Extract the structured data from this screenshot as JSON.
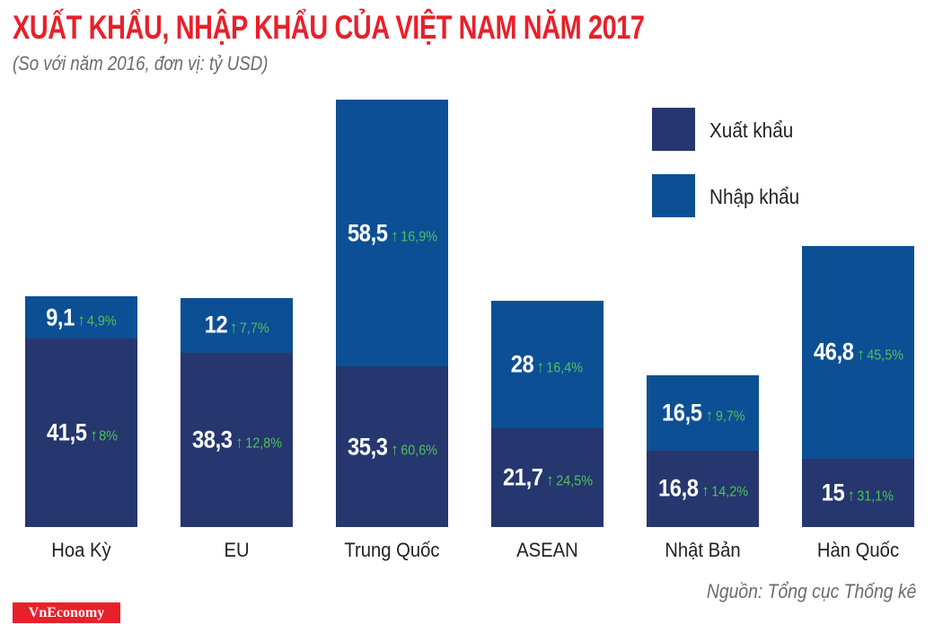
{
  "chart_data": {
    "type": "bar",
    "stacked": true,
    "title": "XUẤT KHẨU, NHẬP KHẨU CỦA VIỆT NAM NĂM 2017",
    "subtitle": "(So với năm 2016, đơn vị: tỷ USD)",
    "categories": [
      "Hoa Kỳ",
      "EU",
      "Trung Quốc",
      "ASEAN",
      "Nhật Bản",
      "Hàn Quốc"
    ],
    "series": [
      {
        "name": "Xuất khẩu",
        "color": "#25376e",
        "values": [
          41.5,
          38.3,
          35.3,
          21.7,
          16.8,
          15
        ],
        "labels": [
          "41,5",
          "38,3",
          "35,3",
          "21,7",
          "16,8",
          "15"
        ],
        "growth": [
          "8%",
          "12,8%",
          "60,6%",
          "24,5%",
          "14,2%",
          "31,1%"
        ]
      },
      {
        "name": "Nhập khẩu",
        "color": "#0d4f94",
        "values": [
          9.1,
          12,
          58.5,
          28,
          16.5,
          46.8
        ],
        "labels": [
          "9,1",
          "12",
          "58,5",
          "28",
          "16,5",
          "46,8"
        ],
        "growth": [
          "4,9%",
          "7,7%",
          "16,9%",
          "16,4%",
          "9,7%",
          "45,5%"
        ]
      }
    ],
    "growth_color": "#4cc35a",
    "growth_icon": "arrow-up-icon",
    "legend_position": "top-right",
    "grid": false,
    "source": "Nguồn: Tổng cục Thống kê"
  },
  "brand": {
    "logo_text": "VnEconomy",
    "title_color": "#e8202a"
  }
}
